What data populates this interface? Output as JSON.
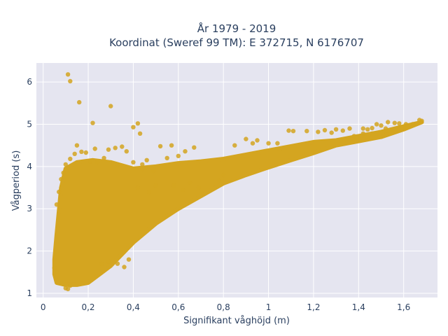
{
  "chart_data": {
    "type": "scatter",
    "title": [
      "År 1979 - 2019",
      "Koordinat (Sweref 99 TM): E 372715, N 6176707"
    ],
    "xlabel": "Signifikant våghöjd (m)",
    "ylabel": "Vågperiod (s)",
    "xlim": [
      -0.03,
      1.75
    ],
    "ylim": [
      0.9,
      6.45
    ],
    "x_ticks": [
      0,
      0.2,
      0.4,
      0.6,
      0.8,
      1,
      1.2,
      1.4,
      1.6
    ],
    "x_tick_labels": [
      "0",
      "0,2",
      "0,4",
      "0,6",
      "0,8",
      "1",
      "1,2",
      "1,4",
      "1,6"
    ],
    "y_ticks": [
      1,
      2,
      3,
      4,
      5,
      6
    ],
    "y_tick_labels": [
      "1",
      "2",
      "3",
      "4",
      "5",
      "6"
    ],
    "grid": true,
    "marker_color": "#d4a520",
    "background_color": "#e5e5f0",
    "points": [
      [
        0.11,
        6.18
      ],
      [
        0.12,
        6.02
      ],
      [
        0.16,
        5.52
      ],
      [
        0.3,
        5.43
      ],
      [
        0.22,
        5.03
      ],
      [
        0.4,
        4.93
      ],
      [
        0.42,
        5.02
      ],
      [
        0.43,
        4.78
      ],
      [
        0.29,
        4.4
      ],
      [
        0.23,
        4.42
      ],
      [
        0.32,
        4.44
      ],
      [
        0.35,
        4.47
      ],
      [
        0.37,
        4.36
      ],
      [
        0.52,
        4.48
      ],
      [
        0.57,
        4.5
      ],
      [
        0.67,
        4.45
      ],
      [
        0.6,
        4.25
      ],
      [
        0.12,
        4.18
      ],
      [
        0.1,
        4.05
      ],
      [
        0.17,
        4.35
      ],
      [
        0.19,
        4.33
      ],
      [
        0.15,
        4.5
      ],
      [
        0.55,
        4.2
      ],
      [
        0.46,
        4.15
      ],
      [
        0.63,
        4.36
      ],
      [
        0.9,
        4.65
      ],
      [
        0.85,
        4.5
      ],
      [
        0.93,
        4.55
      ],
      [
        0.95,
        4.62
      ],
      [
        1.0,
        4.55
      ],
      [
        1.04,
        4.55
      ],
      [
        1.09,
        4.85
      ],
      [
        1.11,
        4.84
      ],
      [
        1.17,
        4.84
      ],
      [
        1.22,
        4.82
      ],
      [
        1.25,
        4.86
      ],
      [
        1.28,
        4.8
      ],
      [
        1.3,
        4.88
      ],
      [
        1.33,
        4.85
      ],
      [
        1.36,
        4.9
      ],
      [
        1.34,
        4.63
      ],
      [
        1.38,
        4.72
      ],
      [
        1.42,
        4.9
      ],
      [
        1.44,
        4.88
      ],
      [
        1.46,
        4.91
      ],
      [
        1.48,
        5.0
      ],
      [
        1.5,
        4.97
      ],
      [
        1.52,
        4.9
      ],
      [
        1.53,
        5.05
      ],
      [
        1.56,
        5.03
      ],
      [
        1.58,
        5.02
      ],
      [
        1.61,
        5.0
      ],
      [
        1.64,
        5.0
      ],
      [
        1.67,
        5.1
      ],
      [
        1.68,
        5.08
      ],
      [
        1.46,
        4.78
      ],
      [
        1.42,
        4.78
      ],
      [
        1.2,
        4.35
      ],
      [
        0.8,
        3.8
      ],
      [
        0.78,
        3.68
      ],
      [
        0.65,
        3.62
      ],
      [
        0.58,
        3.55
      ],
      [
        0.69,
        3.5
      ],
      [
        0.62,
        3.45
      ],
      [
        0.5,
        3.55
      ],
      [
        0.47,
        3.4
      ],
      [
        0.42,
        3.5
      ],
      [
        0.38,
        1.8
      ],
      [
        0.36,
        1.62
      ],
      [
        0.29,
        1.75
      ],
      [
        0.26,
        1.7
      ],
      [
        0.33,
        1.7
      ],
      [
        0.11,
        1.1
      ],
      [
        0.12,
        1.18
      ],
      [
        0.1,
        1.12
      ],
      [
        0.24,
        4.1
      ],
      [
        0.27,
        4.2
      ],
      [
        0.21,
        4.12
      ],
      [
        0.33,
        4.05
      ],
      [
        0.44,
        3.95
      ],
      [
        0.49,
        3.9
      ],
      [
        0.44,
        4.05
      ],
      [
        0.4,
        4.1
      ],
      [
        0.14,
        4.3
      ],
      [
        0.07,
        3.4
      ],
      [
        0.06,
        3.1
      ],
      [
        0.08,
        3.7
      ],
      [
        0.09,
        3.85
      ],
      [
        0.05,
        1.6
      ],
      [
        0.06,
        1.5
      ]
    ],
    "dense_region": {
      "upper_envelope": [
        [
          0.06,
          2.4
        ],
        [
          0.08,
          3.5
        ],
        [
          0.1,
          3.95
        ],
        [
          0.15,
          4.1
        ],
        [
          0.22,
          4.15
        ],
        [
          0.3,
          4.1
        ],
        [
          0.4,
          3.95
        ],
        [
          0.5,
          4.0
        ],
        [
          0.6,
          4.08
        ],
        [
          0.7,
          4.12
        ],
        [
          0.8,
          4.18
        ],
        [
          0.9,
          4.28
        ],
        [
          1.0,
          4.38
        ],
        [
          1.1,
          4.48
        ],
        [
          1.2,
          4.58
        ],
        [
          1.3,
          4.62
        ],
        [
          1.4,
          4.72
        ],
        [
          1.5,
          4.82
        ],
        [
          1.6,
          4.95
        ],
        [
          1.68,
          5.05
        ]
      ],
      "lower_envelope": [
        [
          1.68,
          5.05
        ],
        [
          1.6,
          4.88
        ],
        [
          1.5,
          4.7
        ],
        [
          1.4,
          4.6
        ],
        [
          1.3,
          4.5
        ],
        [
          1.2,
          4.32
        ],
        [
          1.1,
          4.15
        ],
        [
          1.0,
          3.98
        ],
        [
          0.9,
          3.8
        ],
        [
          0.8,
          3.6
        ],
        [
          0.7,
          3.3
        ],
        [
          0.6,
          3.0
        ],
        [
          0.5,
          2.65
        ],
        [
          0.4,
          2.2
        ],
        [
          0.3,
          1.65
        ],
        [
          0.25,
          1.45
        ],
        [
          0.2,
          1.25
        ],
        [
          0.15,
          1.2
        ],
        [
          0.1,
          1.2
        ],
        [
          0.06,
          1.25
        ],
        [
          0.05,
          1.45
        ],
        [
          0.05,
          1.8
        ]
      ]
    }
  }
}
